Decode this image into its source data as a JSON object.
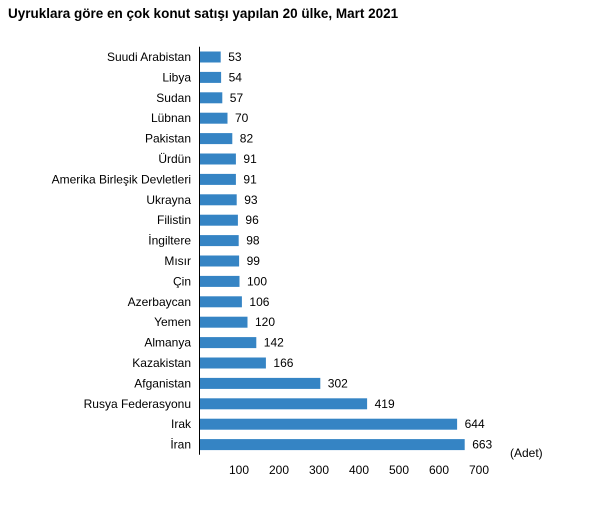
{
  "chart_data": {
    "type": "bar",
    "orientation": "horizontal",
    "title": "Uyruklara göre en çok konut satışı yapılan 20 ülke, Mart 2021",
    "xlabel": "(Adet)",
    "ylabel": "",
    "categories": [
      "Suudi Arabistan",
      "Libya",
      "Sudan",
      "Lübnan",
      "Pakistan",
      "Ürdün",
      "Amerika Birleşik Devletleri",
      "Ukrayna",
      "Filistin",
      "İngiltere",
      "Mısır",
      "Çin",
      "Azerbaycan",
      "Yemen",
      "Almanya",
      "Kazakistan",
      "Afganistan",
      "Rusya Federasyonu",
      "Irak",
      "İran"
    ],
    "values": [
      53,
      54,
      57,
      70,
      82,
      91,
      91,
      93,
      96,
      98,
      99,
      100,
      106,
      120,
      142,
      166,
      302,
      419,
      644,
      663
    ],
    "value_labels": [
      "53",
      "54",
      "57",
      "70",
      "82",
      "91",
      "91",
      "93",
      "96",
      "98",
      "99",
      "100",
      "106",
      "120",
      "142",
      "166",
      "302",
      "419",
      "644",
      "663"
    ],
    "xticks": [
      "100",
      "200",
      "300",
      "400",
      "500",
      "600",
      "700"
    ],
    "xlim": [
      0,
      700
    ],
    "grid": false,
    "legend": "none",
    "bar_color": "#3584c4"
  }
}
